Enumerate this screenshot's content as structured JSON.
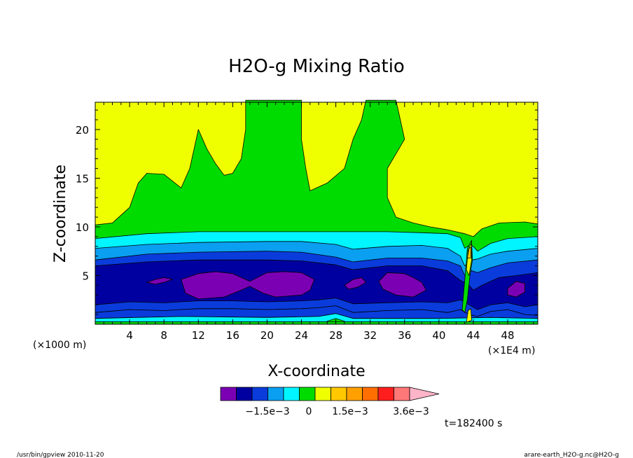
{
  "chart_data": {
    "type": "contour",
    "title": "H2O-g Mixing Ratio",
    "xlabel": "X-coordinate",
    "ylabel": "Z-coordinate",
    "x_unit_left": "(×1000 m)",
    "x_unit_right": "(×1E4 m)",
    "xlim": [
      0,
      51.5
    ],
    "ylim": [
      0,
      22.8
    ],
    "x_ticks": [
      4,
      8,
      12,
      16,
      20,
      24,
      28,
      32,
      36,
      40,
      44,
      48
    ],
    "x_tick_labels": [
      "4",
      "8",
      "12",
      "16",
      "20",
      "24",
      "28",
      "32",
      "36",
      "40",
      "44",
      "48"
    ],
    "y_ticks": [
      5,
      10,
      15,
      20
    ],
    "y_tick_labels": [
      "5",
      "10",
      "15",
      "20"
    ],
    "colorbar": {
      "colors": [
        "#7b00b4",
        "#0000a0",
        "#0a3cdc",
        "#0a9ff0",
        "#00f5ff",
        "#00dc00",
        "#f0ff00",
        "#ffc800",
        "#ffa000",
        "#ff6e00",
        "#ff1e1e",
        "#ff7878",
        "#ffb4c8"
      ],
      "labels": [
        "−1.5e−3",
        "0",
        "1.5e−3",
        "3.6e−3"
      ]
    },
    "time_label": "t=182400 s",
    "layers": [
      {
        "color": "#00dc00",
        "points": [
          [
            0,
            10.2
          ],
          [
            2,
            10.4
          ],
          [
            4,
            12
          ],
          [
            5,
            14.5
          ],
          [
            6,
            15.5
          ],
          [
            8,
            15.4
          ],
          [
            10,
            14
          ],
          [
            11,
            16
          ],
          [
            12,
            20
          ],
          [
            13,
            18
          ],
          [
            14,
            16.5
          ],
          [
            15,
            15.3
          ],
          [
            16,
            15.5
          ],
          [
            17,
            17
          ],
          [
            17.5,
            20
          ],
          [
            17.5,
            23
          ],
          [
            24,
            23
          ],
          [
            24,
            19
          ],
          [
            24.5,
            16
          ],
          [
            25,
            13.7
          ],
          [
            27,
            14.5
          ],
          [
            29,
            16
          ],
          [
            30,
            19
          ],
          [
            31,
            21
          ],
          [
            31.5,
            23
          ],
          [
            35,
            23
          ],
          [
            35.5,
            21
          ],
          [
            36,
            19
          ],
          [
            35,
            17.5
          ],
          [
            34,
            16
          ],
          [
            34,
            13
          ],
          [
            35,
            11
          ],
          [
            37,
            10.4
          ],
          [
            39,
            10
          ],
          [
            41,
            9.7
          ],
          [
            43,
            9.3
          ],
          [
            44,
            9
          ],
          [
            45,
            9.8
          ],
          [
            47,
            10.4
          ],
          [
            50,
            10.5
          ],
          [
            51.5,
            10.3
          ],
          [
            51.5,
            0
          ],
          [
            0,
            0
          ]
        ]
      },
      {
        "color": "#00f5ff",
        "points": [
          [
            0,
            8.8
          ],
          [
            6,
            9.3
          ],
          [
            12,
            9.5
          ],
          [
            24,
            9.5
          ],
          [
            34,
            9.5
          ],
          [
            38,
            9.4
          ],
          [
            41,
            9.3
          ],
          [
            42.5,
            8.9
          ],
          [
            43,
            7.8
          ],
          [
            43.5,
            8.1
          ],
          [
            44,
            8
          ],
          [
            44.5,
            7.5
          ],
          [
            46,
            8.3
          ],
          [
            48,
            8.8
          ],
          [
            51.5,
            9
          ],
          [
            51.5,
            0
          ],
          [
            0,
            0
          ]
        ]
      },
      {
        "color": "#0a9ff0",
        "points": [
          [
            0,
            7.8
          ],
          [
            6,
            8.2
          ],
          [
            12,
            8.4
          ],
          [
            20,
            8.5
          ],
          [
            24,
            8.5
          ],
          [
            28,
            8.2
          ],
          [
            30,
            7.7
          ],
          [
            34,
            8
          ],
          [
            38,
            8.1
          ],
          [
            41,
            7.8
          ],
          [
            42.5,
            7
          ],
          [
            43,
            6
          ],
          [
            43.8,
            6.6
          ],
          [
            44.5,
            6.7
          ],
          [
            46,
            7.2
          ],
          [
            48,
            7.5
          ],
          [
            51.5,
            7.8
          ],
          [
            51.5,
            0
          ],
          [
            0,
            0
          ]
        ]
      },
      {
        "color": "#0a3cdc",
        "points": [
          [
            0,
            6.6
          ],
          [
            6,
            7.2
          ],
          [
            12,
            7.4
          ],
          [
            20,
            7.5
          ],
          [
            24,
            7.4
          ],
          [
            28,
            6.9
          ],
          [
            30,
            6.4
          ],
          [
            34,
            6.8
          ],
          [
            38,
            6.8
          ],
          [
            41,
            6.5
          ],
          [
            42.5,
            6
          ],
          [
            43,
            5
          ],
          [
            43.8,
            5.5
          ],
          [
            44.5,
            5.3
          ],
          [
            46,
            5.8
          ],
          [
            48,
            6.3
          ],
          [
            51.5,
            6.6
          ],
          [
            51.5,
            0.9
          ],
          [
            50,
            1
          ],
          [
            48,
            1.5
          ],
          [
            46,
            1.3
          ],
          [
            44.5,
            0.8
          ],
          [
            43.5,
            1
          ],
          [
            42.5,
            1.5
          ],
          [
            41,
            1.2
          ],
          [
            38,
            1.5
          ],
          [
            34,
            1.4
          ],
          [
            30,
            1.2
          ],
          [
            28,
            1.9
          ],
          [
            26,
            1.7
          ],
          [
            24,
            1.6
          ],
          [
            20,
            1.5
          ],
          [
            16,
            1.6
          ],
          [
            12,
            1.6
          ],
          [
            8,
            1.4
          ],
          [
            4,
            1.5
          ],
          [
            0,
            1.2
          ]
        ]
      },
      {
        "color": "#0000a0",
        "points": [
          [
            0,
            6
          ],
          [
            6,
            6.4
          ],
          [
            12,
            6.6
          ],
          [
            20,
            6.6
          ],
          [
            24,
            6.5
          ],
          [
            28,
            6.1
          ],
          [
            30,
            5.6
          ],
          [
            34,
            6
          ],
          [
            38,
            6
          ],
          [
            41,
            5.5
          ],
          [
            42.5,
            4.5
          ],
          [
            43.5,
            4
          ],
          [
            44,
            3.5
          ],
          [
            45,
            4
          ],
          [
            47,
            4.8
          ],
          [
            49,
            5
          ],
          [
            51.5,
            5.3
          ],
          [
            51.5,
            2
          ],
          [
            50,
            1.8
          ],
          [
            48,
            2.2
          ],
          [
            46,
            2
          ],
          [
            44.5,
            1.5
          ],
          [
            43.5,
            2
          ],
          [
            42.5,
            2.5
          ],
          [
            41,
            2.2
          ],
          [
            38,
            2.3
          ],
          [
            34,
            2.2
          ],
          [
            30,
            2.1
          ],
          [
            28,
            2.7
          ],
          [
            26,
            2.5
          ],
          [
            24,
            2.4
          ],
          [
            20,
            2.3
          ],
          [
            16,
            2.4
          ],
          [
            12,
            2.4
          ],
          [
            8,
            2.2
          ],
          [
            4,
            2.3
          ],
          [
            0,
            2
          ]
        ]
      },
      {
        "color": "#7b00b4",
        "points": [
          [
            6,
            4.3
          ],
          [
            7,
            4.6
          ],
          [
            8,
            4.8
          ],
          [
            9,
            4.6
          ],
          [
            8,
            4.3
          ],
          [
            7,
            4.1
          ]
        ]
      },
      {
        "color": "#7b00b4",
        "points": [
          [
            10,
            4.6
          ],
          [
            12,
            5.2
          ],
          [
            14,
            5.4
          ],
          [
            16,
            5.2
          ],
          [
            18,
            4.4
          ],
          [
            20,
            5.3
          ],
          [
            22,
            5.4
          ],
          [
            24,
            5.3
          ],
          [
            25.5,
            4.6
          ],
          [
            25,
            3.5
          ],
          [
            24,
            3
          ],
          [
            21,
            2.8
          ],
          [
            19.5,
            3.2
          ],
          [
            18,
            3.9
          ],
          [
            17,
            3.5
          ],
          [
            15,
            2.8
          ],
          [
            12,
            2.6
          ],
          [
            10.5,
            3.2
          ]
        ]
      },
      {
        "color": "#7b00b4",
        "points": [
          [
            29,
            4
          ],
          [
            30,
            4.6
          ],
          [
            31,
            4.8
          ],
          [
            31.5,
            4.3
          ],
          [
            30.5,
            3.8
          ],
          [
            29.5,
            3.6
          ]
        ]
      },
      {
        "color": "#7b00b4",
        "points": [
          [
            33,
            4.4
          ],
          [
            34,
            5.3
          ],
          [
            36,
            5.2
          ],
          [
            37,
            4.8
          ],
          [
            38,
            4.3
          ],
          [
            38.5,
            3.5
          ],
          [
            37,
            2.8
          ],
          [
            35,
            3
          ],
          [
            33.5,
            3.6
          ]
        ]
      },
      {
        "color": "#7b00b4",
        "points": [
          [
            48,
            3.7
          ],
          [
            49,
            4.4
          ],
          [
            50,
            4.2
          ],
          [
            50,
            3.3
          ],
          [
            49,
            2.8
          ],
          [
            48,
            3
          ]
        ]
      },
      {
        "color": "#0a3cdc",
        "points": [
          [
            0,
            1.2
          ],
          [
            4,
            1.5
          ],
          [
            8,
            1.4
          ],
          [
            12,
            1.6
          ],
          [
            16,
            1.6
          ],
          [
            20,
            1.5
          ],
          [
            24,
            1.6
          ],
          [
            26,
            1.7
          ],
          [
            28,
            1.9
          ],
          [
            30,
            1.2
          ],
          [
            34,
            1.4
          ],
          [
            38,
            1.5
          ],
          [
            41,
            1.2
          ],
          [
            42.5,
            1.5
          ],
          [
            43.5,
            1
          ],
          [
            44.5,
            0.8
          ],
          [
            46,
            1.3
          ],
          [
            48,
            1.5
          ],
          [
            50,
            1
          ],
          [
            51.5,
            0.9
          ],
          [
            51.5,
            0.6
          ],
          [
            46,
            0.7
          ],
          [
            40,
            0.6
          ],
          [
            30,
            0.6
          ],
          [
            28,
            1.1
          ],
          [
            26,
            0.8
          ],
          [
            20,
            0.7
          ],
          [
            10,
            0.8
          ],
          [
            0,
            0.6
          ]
        ]
      },
      {
        "color": "#00f5ff",
        "points": [
          [
            0,
            0.6
          ],
          [
            10,
            0.8
          ],
          [
            20,
            0.7
          ],
          [
            26,
            0.8
          ],
          [
            28,
            1.1
          ],
          [
            30,
            0.6
          ],
          [
            40,
            0.6
          ],
          [
            46,
            0.7
          ],
          [
            51.5,
            0.6
          ],
          [
            51.5,
            0.25
          ],
          [
            0,
            0.25
          ]
        ]
      },
      {
        "color": "#00dc00",
        "points": [
          [
            26.5,
            0
          ],
          [
            27,
            0.3
          ],
          [
            28,
            0.6
          ],
          [
            29,
            0.3
          ],
          [
            29.5,
            0
          ]
        ]
      },
      {
        "color": "#00dc00",
        "points": [
          [
            0,
            0
          ],
          [
            0,
            0.25
          ],
          [
            51.5,
            0.25
          ],
          [
            51.5,
            0
          ]
        ]
      },
      {
        "color": "#00dc00",
        "points": [
          [
            42.7,
            1.5
          ],
          [
            43.1,
            5.5
          ],
          [
            43.3,
            7.8
          ],
          [
            43.8,
            8.6
          ],
          [
            43.9,
            6.6
          ],
          [
            43.6,
            5
          ],
          [
            43.3,
            2.5
          ],
          [
            43,
            1.2
          ]
        ]
      },
      {
        "color": "#f0ff00",
        "points": [
          [
            43.2,
            5.6
          ],
          [
            43.4,
            7.6
          ],
          [
            43.8,
            8.3
          ],
          [
            43.8,
            6.6
          ],
          [
            43.5,
            5
          ]
        ]
      },
      {
        "color": "#ffc800",
        "points": [
          [
            43.3,
            6.8
          ],
          [
            43.5,
            7.8
          ],
          [
            43.75,
            7.9
          ],
          [
            43.7,
            6.8
          ]
        ]
      },
      {
        "color": "#f0ff00",
        "points": [
          [
            43.2,
            0.2
          ],
          [
            43.4,
            1.4
          ],
          [
            43.7,
            1.6
          ],
          [
            43.8,
            0.4
          ]
        ]
      }
    ]
  },
  "footer": {
    "left": "/usr/bin/gpview   2010-11-20",
    "right": "arare-earth_H2O-g.nc@H2O-g"
  }
}
